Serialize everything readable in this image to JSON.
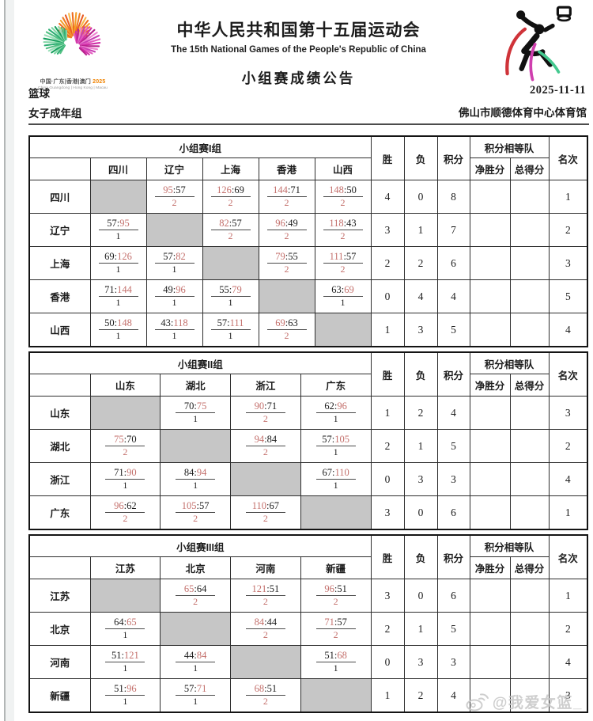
{
  "page": {
    "title_cn": "中华人民共和国第十五届运动会",
    "title_en": "The 15th National Games of the People's Republic of China",
    "bulletin": "小组赛成绩公告",
    "sport": "篮球",
    "category": "女子成年组",
    "date": "2025-11-11",
    "venue": "佛山市顺德体育中心体育馆",
    "emblem_caption": "中国·广东|香港|澳门 ",
    "emblem_caption_year": "2025",
    "emblem_caption_en": "China Guangdong | Hong Kong | Macau",
    "watermark": "@我爱女篮_"
  },
  "table_headers": {
    "win": "胜",
    "loss": "负",
    "points": "积分",
    "tiebreak": "积分相等队",
    "net_points": "净胜分",
    "total_points": "总得分",
    "rank": "名次"
  },
  "colors": {
    "score_red": "#c4706c",
    "diagonal_gray": "#c6c6c6",
    "emblem_orange": "#f08300",
    "emblem_green": "#2fae74",
    "emblem_magenta": "#d12ea8"
  },
  "groups": [
    {
      "name": "小组赛I组",
      "teams": [
        "四川",
        "辽宁",
        "上海",
        "香港",
        "山西"
      ],
      "rows": [
        {
          "team": "四川",
          "matches": [
            null,
            {
              "score": "95:57",
              "red": "left",
              "pts": "2"
            },
            {
              "score": "126:69",
              "red": "left",
              "pts": "2"
            },
            {
              "score": "144:71",
              "red": "left",
              "pts": "2"
            },
            {
              "score": "148:50",
              "red": "left",
              "pts": "2"
            }
          ],
          "win": "4",
          "loss": "0",
          "points": "8",
          "net": "",
          "total": "",
          "rank": "1"
        },
        {
          "team": "辽宁",
          "matches": [
            {
              "score": "57:95",
              "red": "right",
              "pts": "1"
            },
            null,
            {
              "score": "82:57",
              "red": "left",
              "pts": "2"
            },
            {
              "score": "96:49",
              "red": "left",
              "pts": "2"
            },
            {
              "score": "118:43",
              "red": "left",
              "pts": "2"
            }
          ],
          "win": "3",
          "loss": "1",
          "points": "7",
          "net": "",
          "total": "",
          "rank": "2"
        },
        {
          "team": "上海",
          "matches": [
            {
              "score": "69:126",
              "red": "right",
              "pts": "1"
            },
            {
              "score": "57:82",
              "red": "right",
              "pts": "1"
            },
            null,
            {
              "score": "79:55",
              "red": "left",
              "pts": "2"
            },
            {
              "score": "111:57",
              "red": "left",
              "pts": "2"
            }
          ],
          "win": "2",
          "loss": "2",
          "points": "6",
          "net": "",
          "total": "",
          "rank": "3"
        },
        {
          "team": "香港",
          "matches": [
            {
              "score": "71:144",
              "red": "right",
              "pts": "1"
            },
            {
              "score": "49:96",
              "red": "right",
              "pts": "1"
            },
            {
              "score": "55:79",
              "red": "right",
              "pts": "1"
            },
            null,
            {
              "score": "63:69",
              "red": "right",
              "pts": "1"
            }
          ],
          "win": "0",
          "loss": "4",
          "points": "4",
          "net": "",
          "total": "",
          "rank": "5"
        },
        {
          "team": "山西",
          "matches": [
            {
              "score": "50:148",
              "red": "right",
              "pts": "1"
            },
            {
              "score": "43:118",
              "red": "right",
              "pts": "1"
            },
            {
              "score": "57:111",
              "red": "right",
              "pts": "1"
            },
            {
              "score": "69:63",
              "red": "left",
              "pts": "2"
            },
            null
          ],
          "win": "1",
          "loss": "3",
          "points": "5",
          "net": "",
          "total": "",
          "rank": "4"
        }
      ]
    },
    {
      "name": "小组赛II组",
      "teams": [
        "山东",
        "湖北",
        "浙江",
        "广东"
      ],
      "rows": [
        {
          "team": "山东",
          "matches": [
            null,
            {
              "score": "70:75",
              "red": "right",
              "pts": "1"
            },
            {
              "score": "90:71",
              "red": "left",
              "pts": "2"
            },
            {
              "score": "62:96",
              "red": "right",
              "pts": "1"
            }
          ],
          "win": "1",
          "loss": "2",
          "points": "4",
          "net": "",
          "total": "",
          "rank": "3"
        },
        {
          "team": "湖北",
          "matches": [
            {
              "score": "75:70",
              "red": "left",
              "pts": "2"
            },
            null,
            {
              "score": "94:84",
              "red": "left",
              "pts": "2"
            },
            {
              "score": "57:105",
              "red": "right",
              "pts": "1"
            }
          ],
          "win": "2",
          "loss": "1",
          "points": "5",
          "net": "",
          "total": "",
          "rank": "2"
        },
        {
          "team": "浙江",
          "matches": [
            {
              "score": "71:90",
              "red": "right",
              "pts": "1"
            },
            {
              "score": "84:94",
              "red": "right",
              "pts": "1"
            },
            null,
            {
              "score": "67:110",
              "red": "right",
              "pts": "1"
            }
          ],
          "win": "0",
          "loss": "3",
          "points": "3",
          "net": "",
          "total": "",
          "rank": "4"
        },
        {
          "team": "广东",
          "matches": [
            {
              "score": "96:62",
              "red": "left",
              "pts": "2"
            },
            {
              "score": "105:57",
              "red": "left",
              "pts": "2"
            },
            {
              "score": "110:67",
              "red": "left",
              "pts": "2"
            },
            null
          ],
          "win": "3",
          "loss": "0",
          "points": "6",
          "net": "",
          "total": "",
          "rank": "1"
        }
      ]
    },
    {
      "name": "小组赛III组",
      "teams": [
        "江苏",
        "北京",
        "河南",
        "新疆"
      ],
      "rows": [
        {
          "team": "江苏",
          "matches": [
            null,
            {
              "score": "65:64",
              "red": "left",
              "pts": "2"
            },
            {
              "score": "121:51",
              "red": "left",
              "pts": "2"
            },
            {
              "score": "96:51",
              "red": "left",
              "pts": "2"
            }
          ],
          "win": "3",
          "loss": "0",
          "points": "6",
          "net": "",
          "total": "",
          "rank": "1"
        },
        {
          "team": "北京",
          "matches": [
            {
              "score": "64:65",
              "red": "right",
              "pts": "1"
            },
            null,
            {
              "score": "84:44",
              "red": "left",
              "pts": "2"
            },
            {
              "score": "71:57",
              "red": "left",
              "pts": "2"
            }
          ],
          "win": "2",
          "loss": "1",
          "points": "5",
          "net": "",
          "total": "",
          "rank": "2"
        },
        {
          "team": "河南",
          "matches": [
            {
              "score": "51:121",
              "red": "right",
              "pts": "1"
            },
            {
              "score": "44:84",
              "red": "right",
              "pts": "1"
            },
            null,
            {
              "score": "51:68",
              "red": "right",
              "pts": "1"
            }
          ],
          "win": "0",
          "loss": "3",
          "points": "3",
          "net": "",
          "total": "",
          "rank": "4"
        },
        {
          "team": "新疆",
          "matches": [
            {
              "score": "51:96",
              "red": "right",
              "pts": "1"
            },
            {
              "score": "57:71",
              "red": "right",
              "pts": "1"
            },
            {
              "score": "68:51",
              "red": "left",
              "pts": "2"
            },
            null
          ],
          "win": "1",
          "loss": "2",
          "points": "4",
          "net": "",
          "total": "",
          "rank": "3"
        }
      ]
    }
  ]
}
